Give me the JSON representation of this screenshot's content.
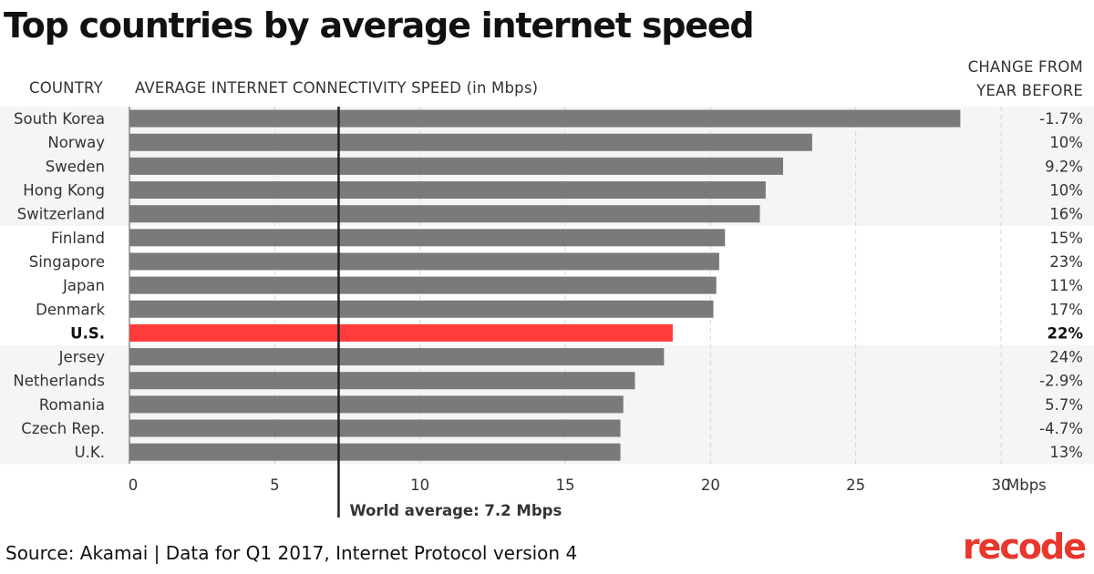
{
  "title": "Top countries by average internet speed",
  "headers": {
    "country": "COUNTRY",
    "metric": "AVERAGE INTERNET CONNECTIVITY SPEED (in Mbps)",
    "change_line1": "CHANGE FROM",
    "change_line2": "YEAR BEFORE"
  },
  "source": "Source: Akamai | Data for Q1 2017, Internet Protocol version 4",
  "logo": "recode",
  "colors": {
    "bar": "#7a7a7a",
    "highlight": "#ff3b3b",
    "band": "#f5f5f5",
    "reference_line": "#222222",
    "grid": "#d6d6d6"
  },
  "chart_data": {
    "type": "bar",
    "orientation": "horizontal",
    "title": "Top countries by average internet speed",
    "xlabel": "AVERAGE INTERNET CONNECTIVITY SPEED (in Mbps)",
    "ylabel": "COUNTRY",
    "xlim": [
      0,
      30
    ],
    "x_ticks": [
      0,
      5,
      10,
      15,
      20,
      25,
      30
    ],
    "x_tick_labels": [
      "0",
      "5",
      "10",
      "15",
      "20",
      "25",
      "30"
    ],
    "x_unit": "Mbps",
    "categories": [
      "South Korea",
      "Norway",
      "Sweden",
      "Hong Kong",
      "Switzerland",
      "Finland",
      "Singapore",
      "Japan",
      "Denmark",
      "U.S.",
      "Jersey",
      "Netherlands",
      "Romania",
      "Czech Rep.",
      "U.K."
    ],
    "values": [
      28.6,
      23.5,
      22.5,
      21.9,
      21.7,
      20.5,
      20.3,
      20.2,
      20.1,
      18.7,
      18.4,
      17.4,
      17.0,
      16.9,
      16.9
    ],
    "change_labels": [
      "-1.7%",
      "10%",
      "9.2%",
      "10%",
      "16%",
      "15%",
      "23%",
      "11%",
      "17%",
      "22%",
      "24%",
      "-2.9%",
      "5.7%",
      "-4.7%",
      "13%"
    ],
    "highlight": "U.S.",
    "reference_line": {
      "value": 7.2,
      "label": "World average: 7.2 Mbps"
    },
    "grid": true
  }
}
